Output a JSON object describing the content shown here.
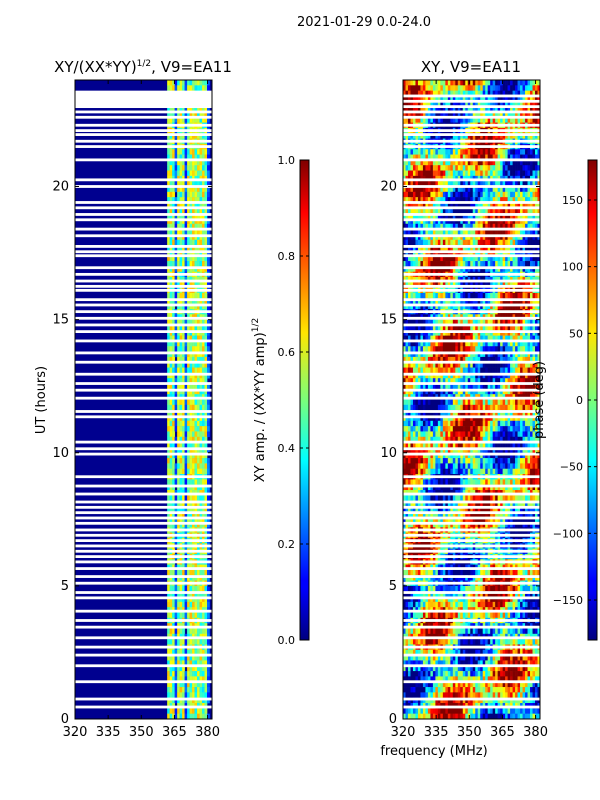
{
  "suptitle": "2021-01-29 0.0-24.0",
  "xlabel_shared": "frequency (MHz)",
  "chart_data": [
    {
      "type": "heatmap",
      "title": "XY/(XX*YY)",
      "title_exp": "1/2",
      "title_suffix": ", V9=EA11",
      "xlabel": "frequency (MHz)",
      "ylabel": "UT (hours)",
      "xlim": [
        320,
        382
      ],
      "ylim": [
        0,
        24
      ],
      "xticks": [
        320,
        335,
        350,
        365,
        380
      ],
      "yticks": [
        0,
        5,
        10,
        15,
        20
      ],
      "colorbar": {
        "label": "XY amp. / (XX*YY amp)",
        "label_exp": "1/2",
        "range": [
          0.0,
          1.0
        ],
        "ticks": [
          "0.0",
          "0.2",
          "0.4",
          "0.6",
          "0.8",
          "1.0"
        ],
        "colormap": "jet"
      },
      "flagged_hours": [
        0.45,
        0.75,
        1.4,
        2.0,
        2.4,
        2.7,
        3.05,
        3.45,
        3.7,
        4.05,
        4.55,
        4.75,
        5.1,
        5.35,
        5.65,
        5.9,
        6.1,
        6.3,
        6.5,
        6.7,
        6.9,
        7.1,
        7.35,
        7.55,
        7.75,
        7.95,
        8.15,
        8.45,
        8.75,
        9.1,
        9.95,
        10.15,
        10.4,
        11.35,
        11.55,
        12.05,
        12.35,
        12.6,
        12.95,
        13.4,
        13.75,
        14.2,
        14.55,
        14.8,
        15.05,
        15.3,
        15.55,
        15.75,
        16.1,
        16.25,
        16.45,
        16.7,
        16.95,
        17.4,
        17.55,
        17.75,
        18.15,
        18.4,
        18.75,
        18.95,
        19.2,
        19.4,
        20.0,
        20.25,
        21.0,
        21.5,
        21.7,
        21.95,
        22.1,
        22.3,
        22.6,
        22.8,
        23.0,
        23.2,
        23.4
      ],
      "rfi_bands_mhz": [
        363.5,
        368,
        372,
        375,
        378
      ]
    },
    {
      "type": "heatmap",
      "title": "XY, V9=EA11",
      "xlabel": "frequency (MHz)",
      "ylabel": "",
      "xlim": [
        320,
        382
      ],
      "ylim": [
        0,
        24
      ],
      "xticks": [
        320,
        335,
        350,
        365,
        380
      ],
      "yticks": [
        0,
        5,
        10,
        15,
        20
      ],
      "colorbar": {
        "label": "phase (deg)",
        "range": [
          -180,
          180
        ],
        "ticks": [
          "−150",
          "−100",
          "−50",
          "0",
          "50",
          "100",
          "150"
        ],
        "tick_values": [
          -150,
          -100,
          -50,
          0,
          50,
          100,
          150
        ],
        "colormap": "jet"
      }
    }
  ]
}
